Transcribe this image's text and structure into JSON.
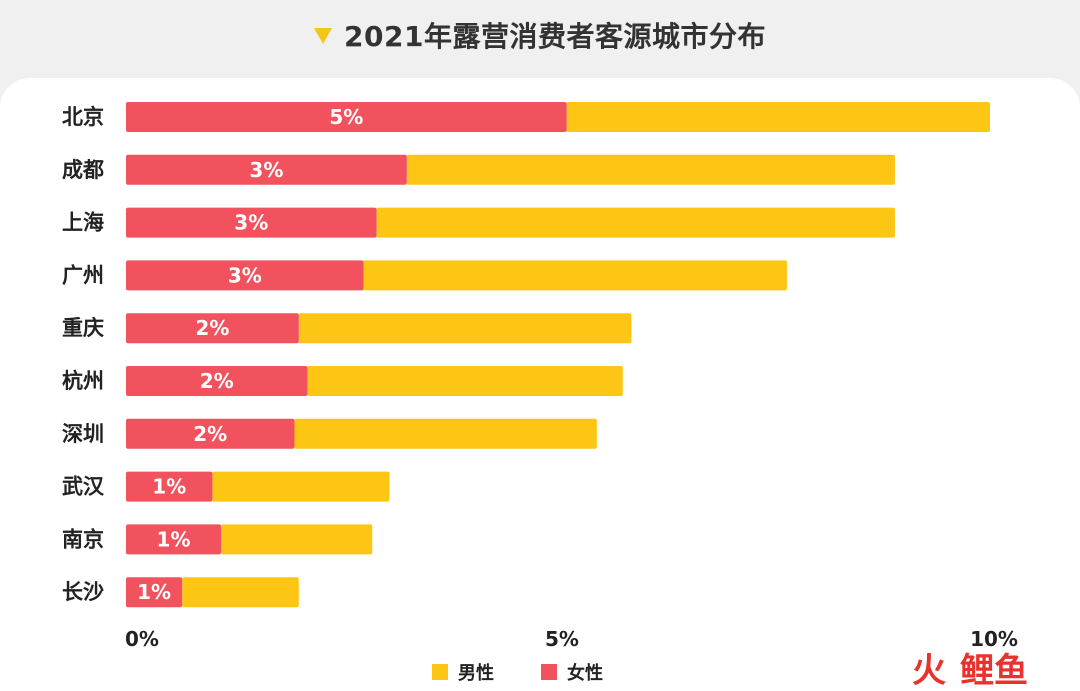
{
  "title": "2021年露营消费者客源城市分布",
  "colors": {
    "male": "#fdc614",
    "female": "#f2525e",
    "text": "#222222"
  },
  "chart_data": {
    "type": "bar",
    "orientation": "horizontal",
    "stacked": true,
    "title": "2021年露营消费者客源城市分布",
    "categories": [
      "北京",
      "成都",
      "上海",
      "广州",
      "重庆",
      "杭州",
      "深圳",
      "武汉",
      "南京",
      "长沙"
    ],
    "series": [
      {
        "name": "女性",
        "color": "#f2525e",
        "values": [
          5.1,
          3.25,
          2.9,
          2.75,
          2.0,
          2.1,
          1.95,
          1.0,
          1.1,
          0.65
        ],
        "labels": [
          "5%",
          "3%",
          "3%",
          "3%",
          "2%",
          "2%",
          "2%",
          "1%",
          "1%",
          "1%"
        ]
      },
      {
        "name": "男性",
        "color": "#fdc614",
        "values": [
          4.9,
          5.65,
          6.0,
          4.9,
          3.85,
          3.65,
          3.5,
          2.05,
          1.75,
          1.35
        ]
      }
    ],
    "xlim": [
      0,
      10
    ],
    "xticks": [
      "0%",
      "5%",
      "10%"
    ],
    "xtick_values": [
      0,
      5,
      10
    ],
    "legend": {
      "placement": "bottom",
      "items": [
        "男性",
        "女性"
      ]
    },
    "grid": false
  },
  "watermark": {
    "part1": "火",
    "part2": "鲤鱼"
  }
}
